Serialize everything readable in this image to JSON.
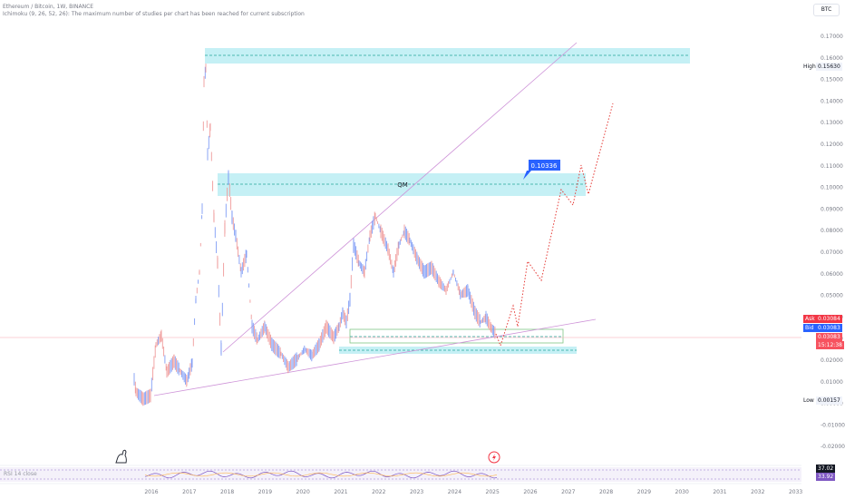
{
  "header": {
    "symbol_line": "Ethereum / Bitcoin, 1W, BINANCE",
    "indicator_line": "Ichimoku (9, 26, 52, 26): The maximum number of studies per chart has been reached for current subscription"
  },
  "currency_button": "BTC",
  "price_axis": {
    "ticks": [
      "0.17000",
      "0.16000",
      "0.15000",
      "0.14000",
      "0.13000",
      "0.12000",
      "0.11000",
      "0.10000",
      "0.09000",
      "0.08000",
      "0.07000",
      "0.06000",
      "0.05000",
      "0.04000",
      "0.03000",
      "0.02000",
      "0.01000",
      "0.00000",
      "-0.01000",
      "-0.02000"
    ],
    "high_label": "High",
    "high_value": "0.15630",
    "low_label": "Low",
    "low_value": "0.00157",
    "ask_label": "Ask",
    "ask_value": "0.03084",
    "bid_label": "Bid",
    "bid_value": "0.03083",
    "last_price": "0.03083",
    "countdown": "15:12:38"
  },
  "time_axis": [
    "2016",
    "2017",
    "2018",
    "2019",
    "2020",
    "2021",
    "2022",
    "2023",
    "2024",
    "2025",
    "2026",
    "2027",
    "2028",
    "2029",
    "2030",
    "2031",
    "2032",
    "2033"
  ],
  "annotations": {
    "qm_label": "QM",
    "target_callout": "0.10336"
  },
  "rsi_panel": {
    "title": "RSI 14 close",
    "value_a": "37.02",
    "value_b": "33.92"
  },
  "colors": {
    "zone_fill": "#b2ebf2",
    "up_candle": "#7f9cf5",
    "down_candle": "#ef9a9a",
    "trendline": "#ce93d8",
    "projection": "#e53935",
    "ask_red": "#f23645",
    "bid_blue": "#2962ff",
    "callout_blue": "#2962ff"
  },
  "icons": [
    "tradingview-logo-icon",
    "lightning-event-icon"
  ]
}
